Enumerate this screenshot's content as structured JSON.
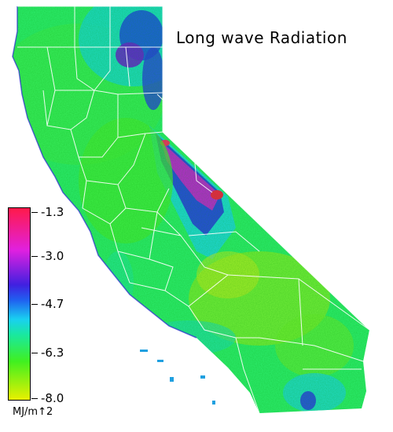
{
  "map": {
    "title": "Long wave Radiation",
    "region": "California",
    "colorbar": {
      "ticks": [
        "-1.3",
        "-3.0",
        "-4.7",
        "-6.3",
        "-8.0"
      ],
      "units": "MJ/m↑2",
      "colors": {
        "max": "#ff1a4a",
        "upper": "#e020e0",
        "mid_high": "#2020e0",
        "mid": "#19d0f0",
        "mid_low": "#19e87a",
        "low": "#40f020",
        "min": "#e8f000"
      }
    }
  }
}
